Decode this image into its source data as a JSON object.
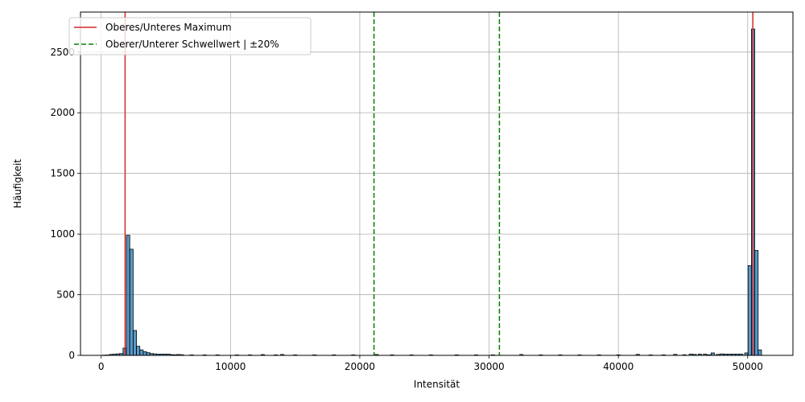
{
  "chart_data": {
    "type": "bar",
    "title": "",
    "xlabel": "Intensität",
    "ylabel": "Häufigkeit",
    "xlim": [
      -1600,
      53500
    ],
    "ylim": [
      0,
      2830
    ],
    "grid": true,
    "legend_placement": "top-left",
    "x_ticks": [
      0,
      10000,
      20000,
      30000,
      40000,
      50000
    ],
    "y_ticks": [
      0,
      500,
      1000,
      1500,
      2000,
      2500
    ],
    "bin_width": 260,
    "bins": [
      {
        "x": 260,
        "y": 2
      },
      {
        "x": 520,
        "y": 3
      },
      {
        "x": 780,
        "y": 8
      },
      {
        "x": 1040,
        "y": 10
      },
      {
        "x": 1300,
        "y": 12
      },
      {
        "x": 1560,
        "y": 15
      },
      {
        "x": 1820,
        "y": 60
      },
      {
        "x": 2080,
        "y": 990
      },
      {
        "x": 2340,
        "y": 875
      },
      {
        "x": 2600,
        "y": 205
      },
      {
        "x": 2860,
        "y": 75
      },
      {
        "x": 3120,
        "y": 45
      },
      {
        "x": 3380,
        "y": 30
      },
      {
        "x": 3640,
        "y": 22
      },
      {
        "x": 3900,
        "y": 15
      },
      {
        "x": 4160,
        "y": 12
      },
      {
        "x": 4420,
        "y": 10
      },
      {
        "x": 4680,
        "y": 10
      },
      {
        "x": 4940,
        "y": 10
      },
      {
        "x": 5200,
        "y": 10
      },
      {
        "x": 5460,
        "y": 6
      },
      {
        "x": 5720,
        "y": 5
      },
      {
        "x": 5980,
        "y": 7
      },
      {
        "x": 6240,
        "y": 5
      },
      {
        "x": 7000,
        "y": 4
      },
      {
        "x": 8000,
        "y": 4
      },
      {
        "x": 9000,
        "y": 4
      },
      {
        "x": 10500,
        "y": 4
      },
      {
        "x": 11500,
        "y": 4
      },
      {
        "x": 12500,
        "y": 6
      },
      {
        "x": 13500,
        "y": 4
      },
      {
        "x": 14000,
        "y": 7
      },
      {
        "x": 15000,
        "y": 4
      },
      {
        "x": 16500,
        "y": 4
      },
      {
        "x": 18000,
        "y": 4
      },
      {
        "x": 19500,
        "y": 4
      },
      {
        "x": 21300,
        "y": 7
      },
      {
        "x": 22500,
        "y": 4
      },
      {
        "x": 24000,
        "y": 4
      },
      {
        "x": 25500,
        "y": 4
      },
      {
        "x": 27500,
        "y": 4
      },
      {
        "x": 29000,
        "y": 4
      },
      {
        "x": 30300,
        "y": 4
      },
      {
        "x": 32500,
        "y": 7
      },
      {
        "x": 34000,
        "y": 4
      },
      {
        "x": 35500,
        "y": 4
      },
      {
        "x": 37000,
        "y": 4
      },
      {
        "x": 38500,
        "y": 4
      },
      {
        "x": 40000,
        "y": 4
      },
      {
        "x": 41500,
        "y": 8
      },
      {
        "x": 42500,
        "y": 4
      },
      {
        "x": 43500,
        "y": 4
      },
      {
        "x": 44400,
        "y": 8
      },
      {
        "x": 45100,
        "y": 5
      },
      {
        "x": 45600,
        "y": 10
      },
      {
        "x": 45900,
        "y": 8
      },
      {
        "x": 46300,
        "y": 10
      },
      {
        "x": 46700,
        "y": 10
      },
      {
        "x": 47000,
        "y": 5
      },
      {
        "x": 47300,
        "y": 20
      },
      {
        "x": 47700,
        "y": 8
      },
      {
        "x": 48000,
        "y": 12
      },
      {
        "x": 48300,
        "y": 10
      },
      {
        "x": 48600,
        "y": 10
      },
      {
        "x": 48900,
        "y": 10
      },
      {
        "x": 49200,
        "y": 10
      },
      {
        "x": 49500,
        "y": 10
      },
      {
        "x": 49900,
        "y": 20
      },
      {
        "x": 50160,
        "y": 740
      },
      {
        "x": 50420,
        "y": 2690
      },
      {
        "x": 50680,
        "y": 865
      },
      {
        "x": 50940,
        "y": 45
      }
    ],
    "lines": [
      {
        "name": "Oberes/Unteres Maximum",
        "style": "solid",
        "color": "#d62728",
        "x": [
          1850,
          50400
        ]
      },
      {
        "name": "Oberer/Unterer Schwellwert | ±20%",
        "style": "dashed",
        "color": "#008000",
        "x": [
          21100,
          30800
        ]
      }
    ],
    "colors": {
      "bar": "#1f77b4",
      "maximum": "#d62728",
      "threshold": "#008000"
    }
  }
}
